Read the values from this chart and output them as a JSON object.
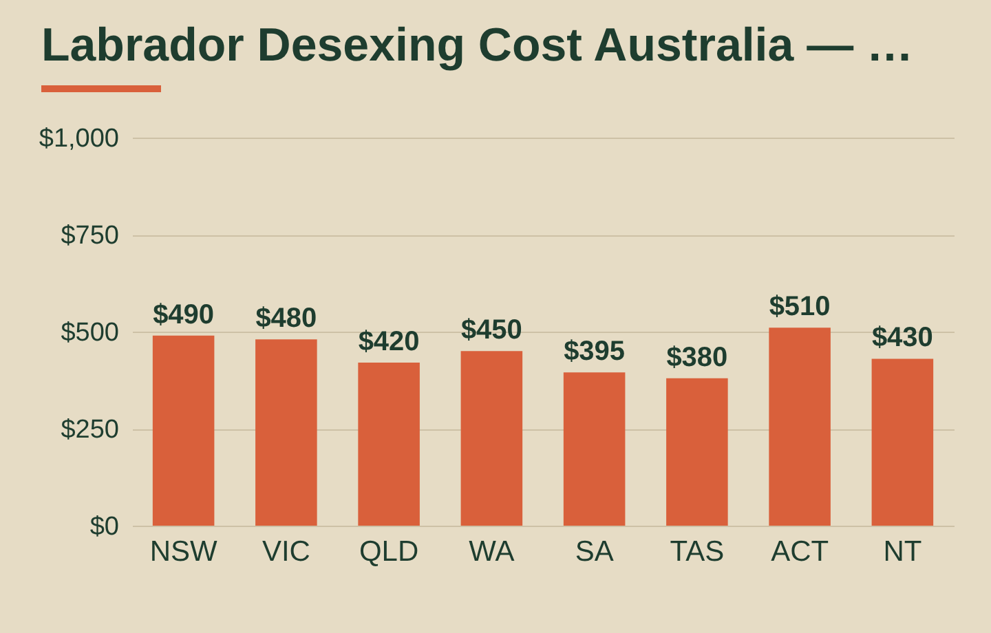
{
  "chart_data": {
    "type": "bar",
    "title": "Labrador Desexing Cost Australia — …",
    "categories": [
      "NSW",
      "VIC",
      "QLD",
      "WA",
      "SA",
      "TAS",
      "ACT",
      "NT"
    ],
    "values": [
      490,
      480,
      420,
      450,
      395,
      380,
      510,
      430
    ],
    "value_labels": [
      "$490",
      "$480",
      "$420",
      "$450",
      "$395",
      "$380",
      "$510",
      "$430"
    ],
    "color": "#d9603b",
    "ylim": [
      0,
      1000
    ],
    "yticks": [
      {
        "value": 0,
        "label": "$0"
      },
      {
        "value": 250,
        "label": "$250"
      },
      {
        "value": 500,
        "label": "$500"
      },
      {
        "value": 750,
        "label": "$750"
      },
      {
        "value": 1000,
        "label": "$1,000"
      }
    ],
    "grid": "y"
  }
}
